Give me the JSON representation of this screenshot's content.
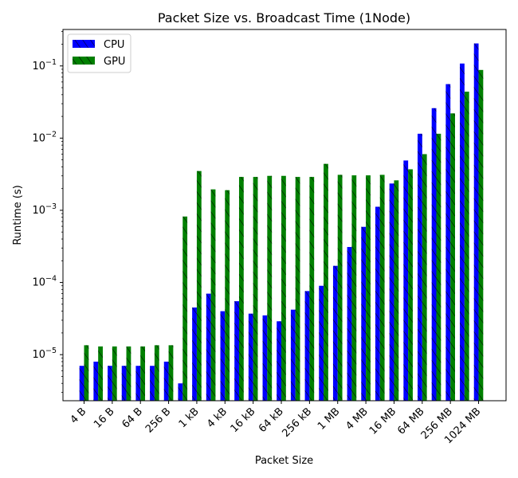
{
  "chart_data": {
    "type": "bar",
    "title": "Packet Size vs. Broadcast Time (1Node)",
    "xlabel": "Packet Size",
    "ylabel": "Runtime (s)",
    "yscale": "log",
    "ylim": [
      2.3e-06,
      0.32
    ],
    "yticks": [
      {
        "value": 1e-05,
        "base": "10",
        "exp": "−5"
      },
      {
        "value": 0.0001,
        "base": "10",
        "exp": "−4"
      },
      {
        "value": 0.001,
        "base": "10",
        "exp": "−3"
      },
      {
        "value": 0.01,
        "base": "10",
        "exp": "−2"
      },
      {
        "value": 0.1,
        "base": "10",
        "exp": "−1"
      }
    ],
    "categories": [
      "4 B",
      "8 B",
      "16 B",
      "32 B",
      "64 B",
      "128 B",
      "256 B",
      "512 B",
      "1 kB",
      "2 kB",
      "4 kB",
      "8 kB",
      "16 kB",
      "32 kB",
      "64 kB",
      "128 kB",
      "256 kB",
      "512 kB",
      "1 MB",
      "2 MB",
      "4 MB",
      "8 MB",
      "16 MB",
      "32 MB",
      "64 MB",
      "128 MB",
      "256 MB",
      "512 MB",
      "1024 MB"
    ],
    "shown_tick_labels": [
      "4 B",
      "16 B",
      "64 B",
      "256 B",
      "1 kB",
      "4 kB",
      "16 kB",
      "64 kB",
      "256 kB",
      "1 MB",
      "4 MB",
      "16 MB",
      "64 MB",
      "256 MB",
      "1024 MB"
    ],
    "series": [
      {
        "name": "CPU",
        "color": "#0000ff",
        "values": [
          7e-06,
          8e-06,
          7e-06,
          7e-06,
          7e-06,
          7e-06,
          8e-06,
          4e-06,
          4.5e-05,
          7e-05,
          4e-05,
          5.5e-05,
          3.7e-05,
          3.5e-05,
          2.9e-05,
          4.2e-05,
          7.6e-05,
          9e-05,
          0.00017,
          0.00031,
          0.00059,
          0.00112,
          0.00235,
          0.0049,
          0.0115,
          0.026,
          0.056,
          0.108,
          0.205
        ]
      },
      {
        "name": "GPU",
        "color": "#008000",
        "values": [
          1.35e-05,
          1.3e-05,
          1.3e-05,
          1.3e-05,
          1.3e-05,
          1.35e-05,
          1.35e-05,
          0.00082,
          0.0035,
          0.00195,
          0.0019,
          0.0029,
          0.0029,
          0.003,
          0.003,
          0.0029,
          0.0029,
          0.0044,
          0.0031,
          0.00305,
          0.00305,
          0.0031,
          0.0026,
          0.0037,
          0.006,
          0.0115,
          0.022,
          0.044,
          0.088
        ]
      }
    ],
    "legend": {
      "position": "top-left"
    }
  }
}
